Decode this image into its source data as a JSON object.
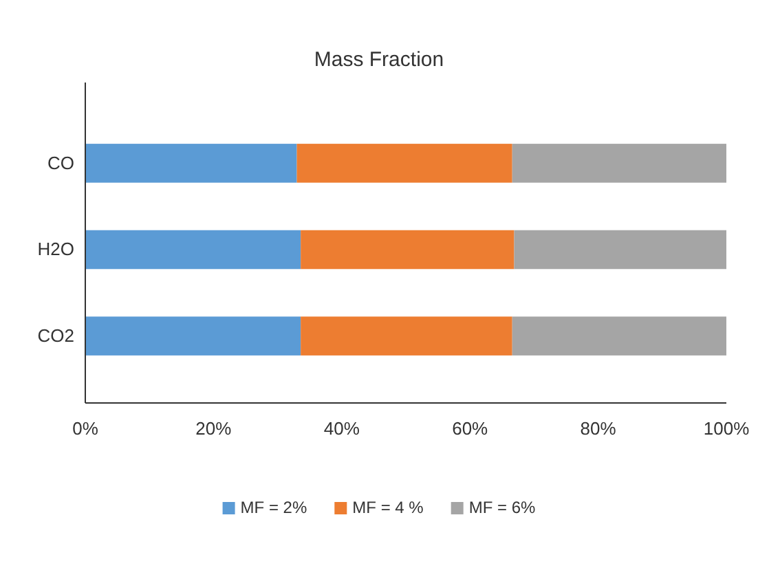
{
  "chart_data": {
    "type": "bar",
    "orientation": "horizontal",
    "stacked": true,
    "title": "Mass Fraction",
    "categories": [
      "CO",
      "H2O",
      "CO2"
    ],
    "series": [
      {
        "name": "MF = 2%",
        "color": "#5b9bd5",
        "values": [
          33.0,
          33.6,
          33.6
        ]
      },
      {
        "name": "MF = 4 %",
        "color": "#ed7d31",
        "values": [
          33.6,
          33.3,
          33.0
        ]
      },
      {
        "name": "MF = 6%",
        "color": "#a5a5a5",
        "values": [
          33.4,
          33.1,
          33.4
        ]
      }
    ],
    "xlim": [
      0,
      100
    ],
    "xticks": [
      {
        "value": 0,
        "label": "0%"
      },
      {
        "value": 20,
        "label": "20%"
      },
      {
        "value": 40,
        "label": "40%"
      },
      {
        "value": 60,
        "label": "60%"
      },
      {
        "value": 80,
        "label": "80%"
      },
      {
        "value": 100,
        "label": "100%"
      }
    ],
    "legend": "bottom",
    "grid": false
  }
}
